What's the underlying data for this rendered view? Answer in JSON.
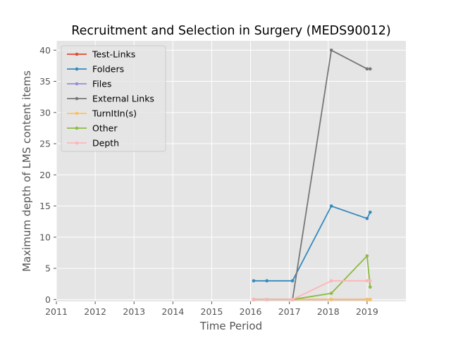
{
  "chart_data": {
    "type": "line",
    "title": "Recruitment and Selection in Surgery (MEDS90012)",
    "xlabel": "Time Period",
    "ylabel": "Maximum depth of LMS content items",
    "xlim": [
      2011,
      2020
    ],
    "ylim": [
      -0.3,
      41.5
    ],
    "xticks": [
      "2011",
      "2012",
      "2013",
      "2014",
      "2015",
      "2016",
      "2017",
      "2018",
      "2019"
    ],
    "yticks": [
      "0",
      "5",
      "10",
      "15",
      "20",
      "25",
      "30",
      "35",
      "40"
    ],
    "grid": true,
    "legend_position": "upper-left",
    "series": [
      {
        "name": "Test-Links",
        "color": "#e24a33",
        "x": [
          2016.08,
          2016.42,
          2017.08,
          2018.08,
          2019.0,
          2019.08
        ],
        "y": [
          0,
          0,
          0,
          0,
          0,
          0
        ]
      },
      {
        "name": "Folders",
        "color": "#348abd",
        "x": [
          2016.08,
          2016.42,
          2017.08,
          2018.08,
          2019.0,
          2019.08
        ],
        "y": [
          3,
          3,
          3,
          15,
          13,
          14
        ]
      },
      {
        "name": "Files",
        "color": "#988ed5",
        "x": [
          2016.08,
          2016.42,
          2017.08,
          2018.08,
          2019.0,
          2019.08
        ],
        "y": [
          0,
          0,
          0,
          0,
          0,
          0
        ]
      },
      {
        "name": "External Links",
        "color": "#777777",
        "x": [
          2016.08,
          2016.42,
          2017.08,
          2018.08,
          2019.0,
          2019.08
        ],
        "y": [
          0,
          0,
          0,
          40,
          37,
          37
        ]
      },
      {
        "name": "TurnItIn(s)",
        "color": "#fbc15e",
        "x": [
          2016.08,
          2016.42,
          2017.08,
          2018.08,
          2019.0,
          2019.08
        ],
        "y": [
          0,
          0,
          0,
          0,
          0,
          0
        ]
      },
      {
        "name": "Other",
        "color": "#8eba42",
        "x": [
          2016.08,
          2016.42,
          2017.08,
          2018.08,
          2019.0,
          2019.08
        ],
        "y": [
          0,
          0,
          0,
          1,
          7,
          2
        ]
      },
      {
        "name": "Depth",
        "color": "#ffb5b8",
        "x": [
          2016.08,
          2016.42,
          2017.08,
          2018.08,
          2019.0,
          2019.08
        ],
        "y": [
          0,
          0,
          0,
          3,
          3,
          3
        ]
      }
    ]
  }
}
